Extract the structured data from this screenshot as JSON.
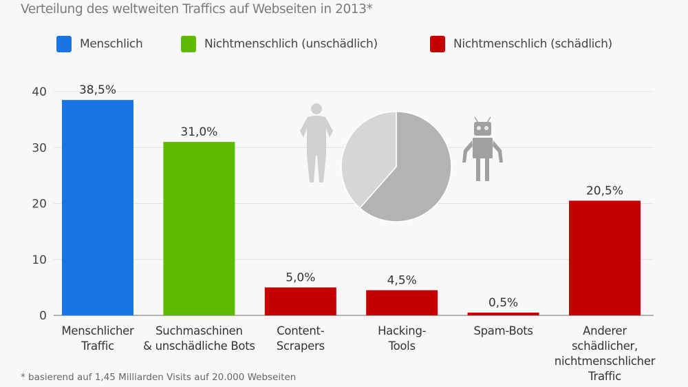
{
  "subtitle": "Verteilung des weltweiten Traffics auf Webseiten in 2013*",
  "legend": [
    {
      "label": "Menschlich",
      "color": "#1a74e2"
    },
    {
      "label": "Nichtmenschlich (unschädlich)",
      "color": "#5fba00"
    },
    {
      "label": "Nichtmenschlich (schädlich)",
      "color": "#c40000"
    }
  ],
  "footnote": "* basierend auf 1,45 Milliarden Visits auf 20.000 Webseiten",
  "chart_data": {
    "type": "bar",
    "categories": [
      [
        "Menschlicher",
        "Traffic"
      ],
      [
        "Suchmaschinen",
        "& unschädliche Bots"
      ],
      [
        "Content-",
        "Scrapers"
      ],
      [
        "Hacking-",
        "Tools"
      ],
      [
        "Spam-Bots"
      ],
      [
        "Anderer",
        "schädlicher,",
        "nichtmenschlicher",
        "Traffic"
      ]
    ],
    "values": [
      38.5,
      31.0,
      5.0,
      4.5,
      0.5,
      20.5
    ],
    "data_labels": [
      "38,5%",
      "31,0%",
      "5,0%",
      "4,5%",
      "0,5%",
      "20,5%"
    ],
    "groups": [
      0,
      1,
      2,
      2,
      2,
      2
    ],
    "ylim": [
      0,
      40
    ],
    "yticks": [
      "0",
      "10",
      "20",
      "30",
      "40"
    ],
    "grid": true,
    "inset_pie": {
      "slices": [
        {
          "name": "Menschlich",
          "value": 38.5,
          "color": "#d6d6d6"
        },
        {
          "name": "Nichtmenschlich",
          "value": 61.5,
          "color": "#b3b3b3"
        }
      ]
    }
  }
}
